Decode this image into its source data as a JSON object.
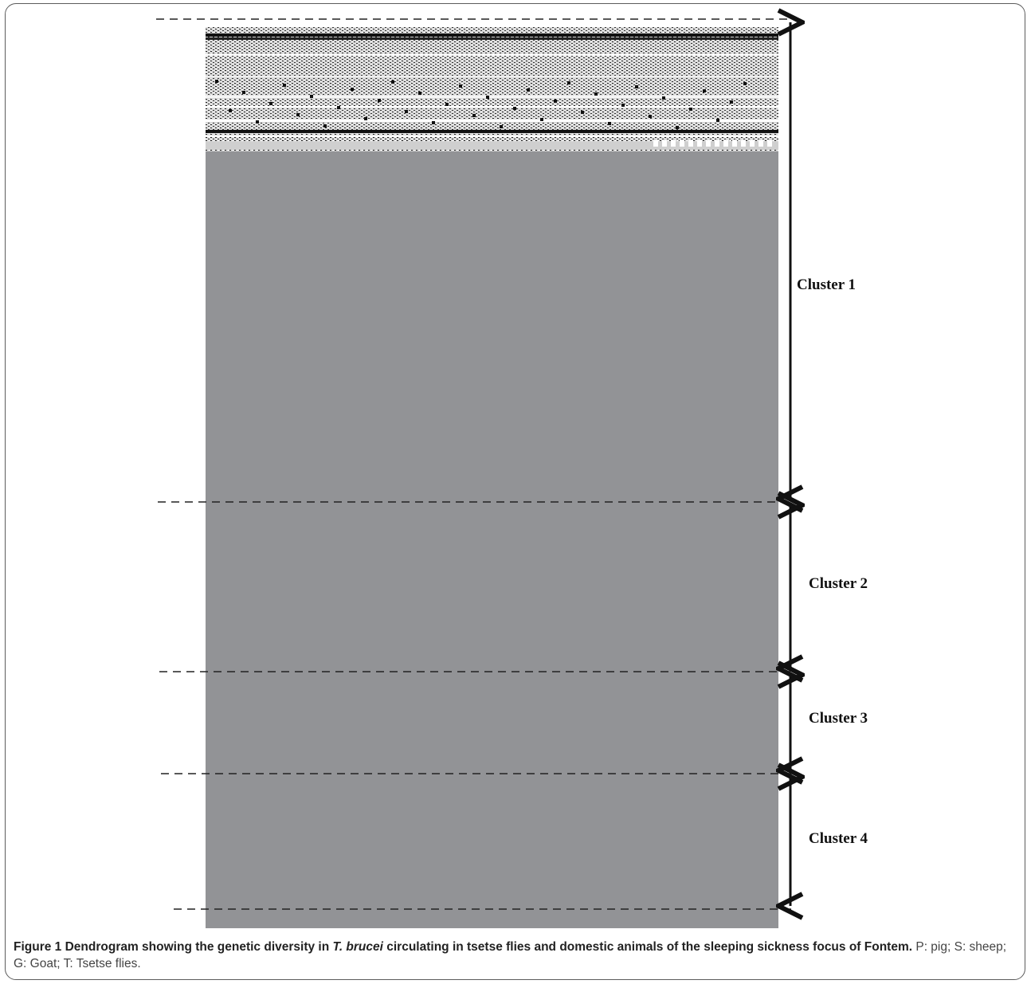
{
  "figure": {
    "clusters": [
      {
        "label": "Cluster 1"
      },
      {
        "label": "Cluster 2"
      },
      {
        "label": "Cluster 3"
      },
      {
        "label": "Cluster 4"
      }
    ],
    "colors": {
      "dendrogram_fill": "#929396",
      "texture_dark": "#1a1a1a",
      "texture_light": "#f0f0f0"
    }
  },
  "caption": {
    "label": "Figure 1",
    "bold_before": " Dendrogram showing the genetic diversity in ",
    "italic": "T. brucei",
    "bold_after": " circulating in tsetse flies and domestic animals of the sleeping sickness focus of Fontem.",
    "legend": " P: pig; S: sheep; G: Goat; T: Tsetse flies."
  }
}
